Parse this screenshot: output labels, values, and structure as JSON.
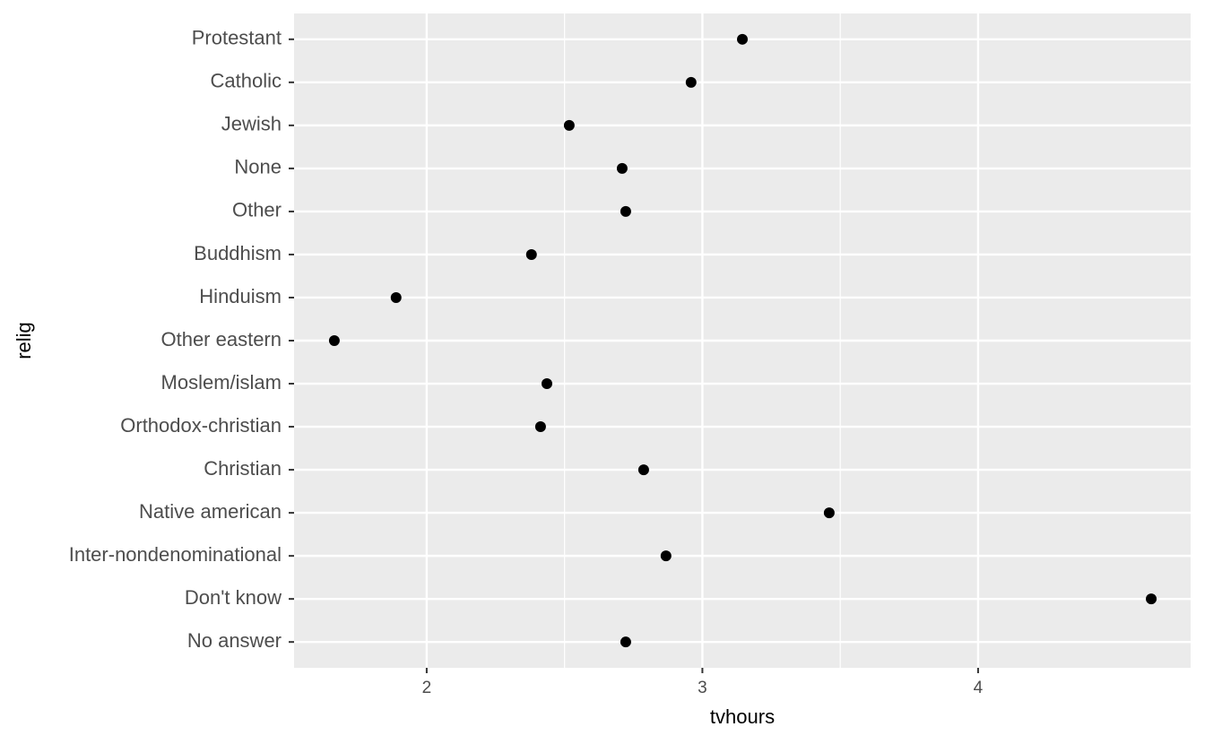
{
  "chart_data": {
    "type": "dot",
    "x_label": "tvhours",
    "y_label": "relig",
    "categories": [
      "Protestant",
      "Catholic",
      "Jewish",
      "None",
      "Other",
      "Buddhism",
      "Hinduism",
      "Other eastern",
      "Moslem/islam",
      "Orthodox-christian",
      "Christian",
      "Native american",
      "Inter-nondenominational",
      "Don't know",
      "No answer"
    ],
    "values": [
      3.145,
      2.959,
      2.517,
      2.709,
      2.722,
      2.38,
      1.889,
      1.665,
      2.436,
      2.413,
      2.787,
      3.46,
      2.868,
      4.628,
      2.722
    ],
    "color": "#000000",
    "xlim": [
      1.519,
      4.771
    ],
    "xticks": [
      2,
      3,
      4
    ],
    "grid": true
  }
}
